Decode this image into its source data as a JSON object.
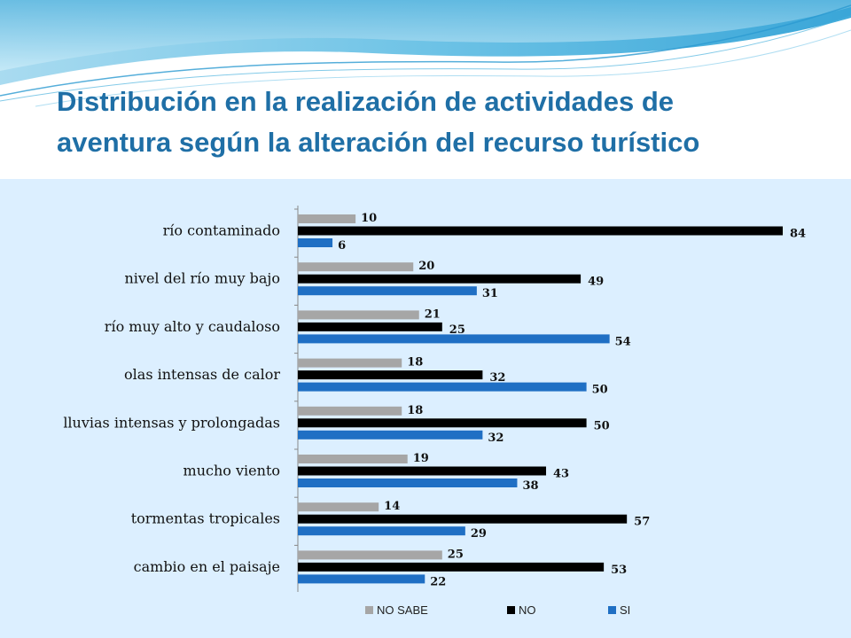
{
  "slide": {
    "title_line1": "Distribución en la realización de actividades de",
    "title_line2": "aventura según la alteración del recurso turístico"
  },
  "colors": {
    "title": "#1f6fa6",
    "panel_background": "#dcefff",
    "no_sabe": "#a6a6a6",
    "no": "#000000",
    "si": "#1f6fc4"
  },
  "chart_data": {
    "type": "bar",
    "orientation": "horizontal",
    "categories": [
      "río contaminado",
      "nivel del río muy bajo",
      "río muy alto y caudaloso",
      "olas  intensas de calor",
      "lluvias intensas y prolongadas",
      "mucho viento",
      "tormentas tropicales",
      "cambio en el paisaje"
    ],
    "series": [
      {
        "name": "NO SABE",
        "color": "#a6a6a6",
        "values": [
          10,
          20,
          21,
          18,
          18,
          19,
          14,
          25
        ]
      },
      {
        "name": "NO",
        "color": "#000000",
        "values": [
          84,
          49,
          25,
          32,
          50,
          43,
          57,
          53
        ]
      },
      {
        "name": "SI",
        "color": "#1f6fc4",
        "values": [
          6,
          31,
          54,
          50,
          32,
          38,
          29,
          22
        ]
      }
    ],
    "xlim": [
      0,
      84
    ],
    "grid": false,
    "legend": "bottom",
    "data_labels": true
  }
}
